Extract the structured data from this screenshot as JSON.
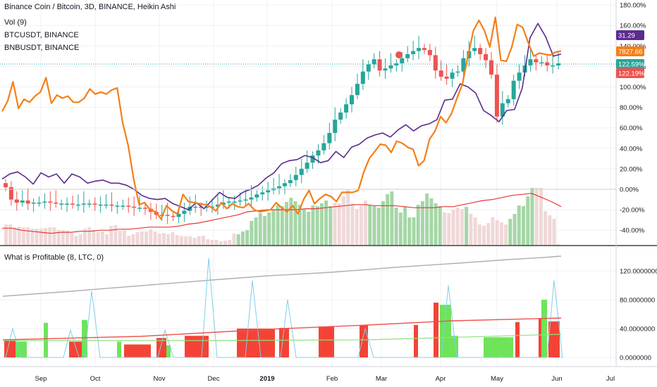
{
  "header": {
    "title": "Binance Coin / Bitcoin, 3D, BINANCE, Heikin Ashi",
    "volume_label": "Vol (9)",
    "compare_1": "BTCUSDT, BINANCE",
    "compare_2": "BNBUSDT, BINANCE"
  },
  "indicator": {
    "title": "What is Profitable (8, LTC, 0)"
  },
  "colors": {
    "up": "#26a69a",
    "down": "#ef5350",
    "btc_line": "#5b2c8f",
    "bnb_line": "#f57f17",
    "vol_up": "#a5d6a7",
    "vol_down": "#f0d8d8",
    "vol_ma": "#e53935",
    "grid": "#eef0f4",
    "bar_red": "#f44336",
    "bar_green": "#6fe35a",
    "spike_line": "#7fd0e8",
    "gray_line": "#b0b0b0",
    "ma_line": "#ef5350",
    "ma_green": "#8ee07a"
  },
  "chart_data": [
    {
      "type": "candlestick",
      "title": "Binance Coin / Bitcoin, 3D, BINANCE, Heikin Ashi",
      "y_unit": "percent",
      "ylim": [
        -55,
        182
      ],
      "y_ticks": [
        "180.00%",
        "160.00%",
        "140.00%",
        "120.00%",
        "100.00%",
        "80.00%",
        "60.00%",
        "40.00%",
        "20.00%",
        "0.00%",
        "-20.00%",
        "-40.00%"
      ],
      "x_ticks": [
        "Sep",
        "Oct",
        "Nov",
        "Dec",
        "2019",
        "Feb",
        "Mar",
        "Apr",
        "May",
        "Jun",
        "Jul"
      ],
      "close": [
        2,
        -10,
        -13,
        -11,
        -14,
        -13,
        -13,
        -12,
        -13,
        -14,
        -14,
        -14,
        -15,
        -15,
        -14,
        -14,
        -15,
        -15,
        -15,
        -16,
        -16,
        -16,
        -17,
        -18,
        -18,
        -19,
        -22,
        -25,
        -25,
        -26,
        -27,
        -24,
        -21,
        -17,
        -17,
        -18,
        -17,
        -17,
        -15,
        -13,
        -12,
        -12,
        -11,
        -10,
        -8,
        -5,
        -3,
        -1,
        1,
        3,
        6,
        9,
        14,
        20,
        26,
        33,
        38,
        45,
        55,
        68,
        75,
        83,
        92,
        103,
        115,
        122,
        127,
        116,
        118,
        121,
        123,
        128,
        132,
        135,
        138,
        136,
        131,
        116,
        110,
        108,
        114,
        115,
        128,
        135,
        138,
        132,
        126,
        112,
        71,
        84,
        88,
        106,
        114,
        121,
        127,
        124,
        124,
        121,
        121,
        123
      ],
      "series": [
        {
          "name": "BTCUSDT, BINANCE",
          "last_label": "31.29",
          "values": [
            10,
            15,
            17,
            12,
            5,
            16,
            12,
            15,
            6,
            15,
            12,
            6,
            8,
            9,
            6,
            6,
            4,
            0,
            -6,
            -9,
            -10,
            -9,
            -14,
            -17,
            -20,
            -13,
            -19,
            -11,
            -3,
            -8,
            -9,
            -3,
            0,
            4,
            11,
            16,
            25,
            28,
            29,
            33,
            31,
            26,
            28,
            37,
            31,
            41,
            44,
            50,
            53,
            55,
            51,
            58,
            63,
            57,
            62,
            64,
            68,
            87,
            88,
            103,
            100,
            94,
            77,
            72,
            66,
            77,
            78,
            99,
            148,
            162,
            149,
            130,
            132
          ]
        },
        {
          "name": "BNBUSDT, BINANCE",
          "last_label": "7827.66",
          "values": [
            76,
            86,
            105,
            79,
            88,
            85,
            91,
            95,
            109,
            84,
            92,
            89,
            91,
            85,
            85,
            89,
            98,
            93,
            95,
            93,
            97,
            99,
            65,
            43,
            10,
            -15,
            -13,
            -20,
            -22,
            -29,
            -16,
            -21,
            -24,
            -5,
            -12,
            -13,
            -14,
            -15,
            -17,
            -21,
            -13,
            -19,
            -14,
            -17,
            -18,
            -14,
            -20,
            -22,
            -21,
            -20,
            -13,
            -18,
            -22,
            -16,
            -24,
            -10,
            -1,
            -14,
            -9,
            -5,
            -7,
            -12,
            -3,
            -3,
            -3,
            -1,
            17,
            30,
            37,
            44,
            43,
            36,
            47,
            45,
            41,
            39,
            23,
            28,
            49,
            57,
            71,
            65,
            74,
            89,
            103,
            130,
            155,
            165,
            155,
            139,
            168,
            126,
            125,
            139,
            161,
            158,
            143,
            130,
            133,
            132,
            131,
            134,
            135
          ]
        },
        {
          "name": "Volume MA",
          "values": [
            -38,
            -38,
            -40,
            -41,
            -42,
            -43,
            -42,
            -42,
            -41,
            -41,
            -40,
            -40,
            -39,
            -39,
            -38,
            -37,
            -37,
            -37,
            -36,
            -34,
            -33,
            -31,
            -29,
            -27,
            -25,
            -22,
            -21,
            -20,
            -20,
            -20,
            -20,
            -19,
            -19,
            -18,
            -17,
            -16,
            -15,
            -15,
            -16,
            -16,
            -16,
            -17,
            -18,
            -18,
            -18,
            -17,
            -17,
            -15,
            -13,
            -11,
            -10,
            -8,
            -6,
            -5,
            -4,
            -8,
            -12,
            -17
          ]
        }
      ],
      "price_tags": [
        "122.59%",
        "122.19%"
      ]
    },
    {
      "type": "bar",
      "title": "What is Profitable (8, LTC, 0)",
      "y_ticks": [
        "120.0000000",
        "80.0000000",
        "40.0000000",
        "0.0000000"
      ],
      "ylim": [
        -8,
        150
      ]
    }
  ]
}
